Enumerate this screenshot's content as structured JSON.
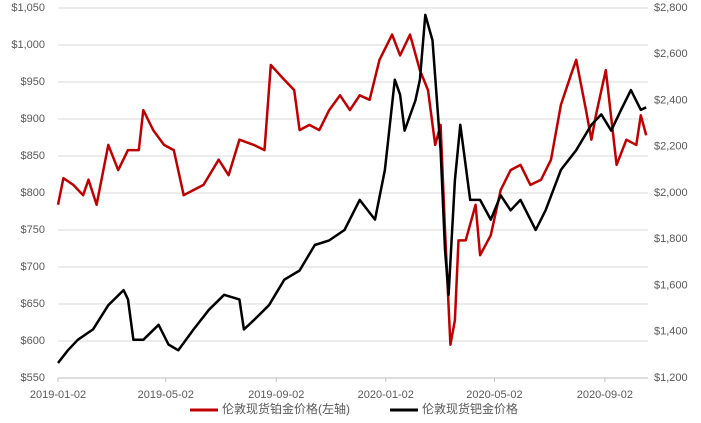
{
  "chart_data": {
    "type": "line",
    "xlim": [
      "2019-01-02",
      "2020-10-20"
    ],
    "xticks": [
      "2019-01-02",
      "2019-05-02",
      "2019-09-02",
      "2020-01-02",
      "2020-05-02",
      "2020-09-02"
    ],
    "ylim": [
      550,
      1050
    ],
    "yticks": [
      {
        "value": 550,
        "label": "$550"
      },
      {
        "value": 600,
        "label": "$600"
      },
      {
        "value": 650,
        "label": "$650"
      },
      {
        "value": 700,
        "label": "$700"
      },
      {
        "value": 750,
        "label": "$750"
      },
      {
        "value": 800,
        "label": "$800"
      },
      {
        "value": 850,
        "label": "$850"
      },
      {
        "value": 900,
        "label": "$900"
      },
      {
        "value": 950,
        "label": "$950"
      },
      {
        "value": 1000,
        "label": "$1,000"
      },
      {
        "value": 1050,
        "label": "$1,050"
      }
    ],
    "y2lim": [
      1200,
      2800
    ],
    "y2ticks": [
      {
        "value": 1200,
        "label": "$1,200"
      },
      {
        "value": 1400,
        "label": "$1,400"
      },
      {
        "value": 1600,
        "label": "$1,600"
      },
      {
        "value": 1800,
        "label": "$1,800"
      },
      {
        "value": 2000,
        "label": "$2,000"
      },
      {
        "value": 2200,
        "label": "$2,200"
      },
      {
        "value": 2400,
        "label": "$2,400"
      },
      {
        "value": 2600,
        "label": "$2,600"
      },
      {
        "value": 2800,
        "label": "$2,800"
      }
    ],
    "grid": true,
    "legend": "bottom",
    "series": [
      {
        "name": "伦敦现货铂金价格(左轴)",
        "color": "#c00000",
        "axis": "y",
        "x": [
          "2019-01-02",
          "2019-01-08",
          "2019-01-19",
          "2019-01-30",
          "2019-02-05",
          "2019-02-14",
          "2019-02-27",
          "2019-03-10",
          "2019-03-21",
          "2019-04-02",
          "2019-04-07",
          "2019-04-18",
          "2019-04-30",
          "2019-05-11",
          "2019-05-22",
          "2019-06-02",
          "2019-06-13",
          "2019-06-30",
          "2019-07-11",
          "2019-07-23",
          "2019-08-08",
          "2019-08-20",
          "2019-08-27",
          "2019-09-11",
          "2019-09-22",
          "2019-09-28",
          "2019-10-09",
          "2019-10-20",
          "2019-10-31",
          "2019-11-12",
          "2019-11-23",
          "2019-12-04",
          "2019-12-15",
          "2019-12-26",
          "2020-01-09",
          "2020-01-18",
          "2020-01-29",
          "2020-02-09",
          "2020-02-18",
          "2020-02-26",
          "2020-03-03",
          "2020-03-08",
          "2020-03-14",
          "2020-03-19",
          "2020-03-23",
          "2020-03-31",
          "2020-04-11",
          "2020-04-16",
          "2020-04-28",
          "2020-05-09",
          "2020-05-20",
          "2020-05-31",
          "2020-06-11",
          "2020-06-23",
          "2020-07-04",
          "2020-07-15",
          "2020-07-26",
          "2020-08-01",
          "2020-08-12",
          "2020-08-18",
          "2020-08-23",
          "2020-09-03",
          "2020-09-15",
          "2020-09-26",
          "2020-10-07",
          "2020-10-12",
          "2020-10-18"
        ],
        "values": [
          784,
          820,
          811,
          797,
          818,
          784,
          865,
          831,
          858,
          858,
          912,
          885,
          865,
          858,
          797,
          804,
          811,
          845,
          824,
          872,
          865,
          858,
          973,
          953,
          939,
          885,
          892,
          885,
          912,
          932,
          912,
          932,
          926,
          980,
          1014,
          986,
          1014,
          966,
          939,
          865,
          892,
          750,
          595,
          628,
          736,
          736,
          784,
          716,
          743,
          804,
          831,
          838,
          811,
          818,
          845,
          919,
          959,
          980,
          912,
          872,
          905,
          966,
          838,
          872,
          865,
          905,
          878
        ]
      },
      {
        "name": "伦敦现货钯金价格",
        "color": "#000000",
        "axis": "y2",
        "x": [
          "2019-01-02",
          "2019-01-13",
          "2019-01-24",
          "2019-02-10",
          "2019-02-27",
          "2019-03-16",
          "2019-03-21",
          "2019-03-27",
          "2019-04-07",
          "2019-04-24",
          "2019-05-05",
          "2019-05-16",
          "2019-06-02",
          "2019-06-19",
          "2019-07-06",
          "2019-07-23",
          "2019-07-28",
          "2019-08-08",
          "2019-08-25",
          "2019-09-11",
          "2019-09-28",
          "2019-10-15",
          "2019-10-31",
          "2019-11-17",
          "2019-12-04",
          "2019-12-21",
          "2020-01-01",
          "2020-01-12",
          "2020-01-18",
          "2020-01-23",
          "2020-02-04",
          "2020-02-09",
          "2020-02-15",
          "2020-02-23",
          "2020-03-03",
          "2020-03-08",
          "2020-03-12",
          "2020-03-19",
          "2020-03-25",
          "2020-04-05",
          "2020-04-16",
          "2020-04-28",
          "2020-05-09",
          "2020-05-20",
          "2020-05-31",
          "2020-06-17",
          "2020-06-28",
          "2020-07-15",
          "2020-08-01",
          "2020-08-18",
          "2020-08-29",
          "2020-09-09",
          "2020-09-20",
          "2020-10-01",
          "2020-10-12",
          "2020-10-18"
        ],
        "values": [
          1265,
          1320,
          1365,
          1410,
          1515,
          1580,
          1540,
          1365,
          1365,
          1430,
          1345,
          1320,
          1410,
          1495,
          1560,
          1540,
          1410,
          1450,
          1515,
          1625,
          1665,
          1775,
          1795,
          1840,
          1970,
          1885,
          2100,
          2490,
          2425,
          2270,
          2400,
          2490,
          2770,
          2660,
          2185,
          1755,
          1560,
          2055,
          2295,
          1970,
          1970,
          1885,
          1990,
          1925,
          1970,
          1840,
          1925,
          2100,
          2185,
          2295,
          2340,
          2270,
          2360,
          2445,
          2360,
          2370
        ]
      }
    ]
  }
}
